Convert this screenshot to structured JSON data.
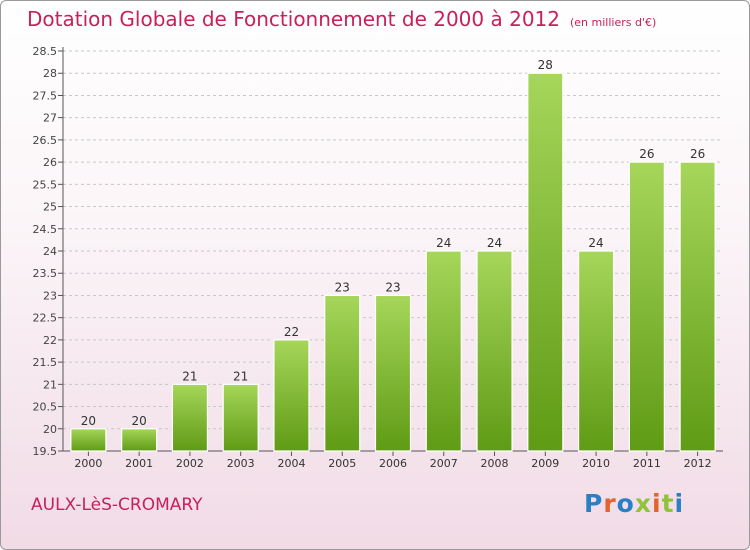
{
  "header": {
    "title": "Dotation Globale de Fonctionnement de 2000 à 2012",
    "subtitle": "(en milliers d'€)"
  },
  "footer": {
    "commune": "AULX-LèS-CROMARY",
    "logo_letters": [
      "P",
      "r",
      "o",
      "x",
      "i",
      "t",
      "i"
    ],
    "logo_colors": [
      "#2b7fc4",
      "#e2632b",
      "#2b7fc4",
      "#8fc43a",
      "#e2632b",
      "#8fc43a",
      "#2b7fc4"
    ]
  },
  "colors": {
    "title": "#c8205a",
    "bar_top": "#a6d65a",
    "bar_bottom": "#5f9b15",
    "grid": "#c7c7c7"
  },
  "chart_data": {
    "type": "bar",
    "title": "Dotation Globale de Fonctionnement de 2000 à 2012",
    "subtitle": "(en milliers d'€)",
    "categories": [
      "2000",
      "2001",
      "2002",
      "2003",
      "2004",
      "2005",
      "2006",
      "2007",
      "2008",
      "2009",
      "2010",
      "2011",
      "2012"
    ],
    "values": [
      20,
      20,
      21,
      21,
      22,
      23,
      23,
      24,
      24,
      28,
      24,
      26,
      26
    ],
    "data_labels": [
      "20",
      "20",
      "21",
      "21",
      "22",
      "23",
      "23",
      "24",
      "24",
      "28",
      "24",
      "26",
      "26"
    ],
    "ylim": [
      19.5,
      28.5
    ],
    "yticks": [
      19.5,
      20,
      20.5,
      21,
      21.5,
      22,
      22.5,
      23,
      23.5,
      24,
      24.5,
      25,
      25.5,
      26,
      26.5,
      27,
      27.5,
      28,
      28.5
    ],
    "ytick_labels": [
      "19.5",
      "20",
      "20.5",
      "21",
      "21.5",
      "22",
      "22.5",
      "23",
      "23.5",
      "24",
      "24.5",
      "25",
      "25.5",
      "26",
      "26.5",
      "27",
      "27.5",
      "28",
      "28.5"
    ],
    "grid": true,
    "xlabel": "",
    "ylabel": ""
  }
}
